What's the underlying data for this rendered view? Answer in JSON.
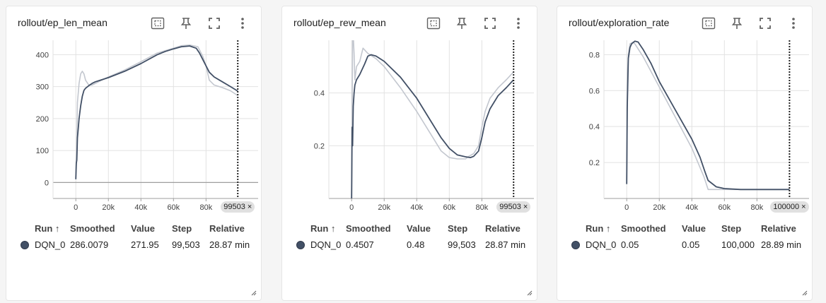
{
  "colors": {
    "smoothed": "#425066",
    "raw": "#c3c7cf",
    "grid": "#e2e2e2",
    "axis": "#9e9e9e"
  },
  "table_headers": {
    "run": "Run ↑",
    "smoothed": "Smoothed",
    "value": "Value",
    "step": "Step",
    "relative": "Relative"
  },
  "cards": [
    {
      "title": "rollout/ep_len_mean",
      "step_badge": "99503 ×",
      "row": {
        "run": "DQN_0",
        "smoothed": "286.0079",
        "value": "271.95",
        "step": "99,503",
        "relative": "28.87 min"
      }
    },
    {
      "title": "rollout/ep_rew_mean",
      "step_badge": "99503 ×",
      "row": {
        "run": "DQN_0",
        "smoothed": "0.4507",
        "value": "0.48",
        "step": "99,503",
        "relative": "28.87 min"
      }
    },
    {
      "title": "rollout/exploration_rate",
      "step_badge": "100000 ×",
      "row": {
        "run": "DQN_0",
        "smoothed": "0.05",
        "value": "0.05",
        "step": "100,000",
        "relative": "28.89 min"
      }
    }
  ],
  "chart_data": [
    {
      "type": "line",
      "title": "rollout/ep_len_mean",
      "xlim": [
        -14000,
        112000
      ],
      "ylim": [
        -50,
        445
      ],
      "xticks": [
        0,
        20000,
        40000,
        60000,
        80000
      ],
      "xtick_labels": [
        "0",
        "20k",
        "40k",
        "60k",
        "80k"
      ],
      "yticks": [
        0,
        100,
        200,
        300,
        400
      ],
      "ytick_labels": [
        "0",
        "100",
        "200",
        "300",
        "400"
      ],
      "cursor_step": 99503,
      "series": [
        {
          "name": "DQN_0",
          "kind": "raw",
          "x": [
            0,
            500,
            1000,
            2000,
            3000,
            4000,
            5000,
            6000,
            8000,
            10000,
            12000,
            15000,
            20000,
            30000,
            40000,
            50000,
            60000,
            65000,
            70000,
            75000,
            78000,
            80000,
            82000,
            85000,
            90000,
            95000,
            99503
          ],
          "y": [
            15,
            100,
            250,
            310,
            340,
            348,
            340,
            320,
            305,
            305,
            310,
            318,
            330,
            352,
            378,
            405,
            420,
            428,
            430,
            425,
            395,
            365,
            320,
            305,
            297,
            287,
            272
          ]
        },
        {
          "name": "DQN_0",
          "kind": "smoothed",
          "x": [
            0,
            300,
            600,
            1000,
            1500,
            2000,
            3000,
            4000,
            5000,
            6000,
            8000,
            10000,
            12000,
            15000,
            20000,
            30000,
            40000,
            50000,
            55000,
            60000,
            65000,
            70000,
            74000,
            76000,
            78000,
            80000,
            82000,
            85000,
            90000,
            95000,
            99503
          ],
          "y": [
            10,
            60,
            70,
            140,
            170,
            200,
            240,
            270,
            288,
            295,
            303,
            310,
            315,
            320,
            328,
            348,
            372,
            400,
            410,
            418,
            425,
            427,
            420,
            405,
            385,
            365,
            345,
            330,
            315,
            300,
            286
          ]
        }
      ]
    },
    {
      "type": "line",
      "title": "rollout/ep_rew_mean",
      "xlim": [
        -14000,
        112000
      ],
      "ylim": [
        0,
        0.6
      ],
      "xticks": [
        0,
        20000,
        40000,
        60000,
        80000
      ],
      "xtick_labels": [
        "0",
        "20k",
        "40k",
        "60k",
        "80k"
      ],
      "yticks": [
        0.2,
        0.4
      ],
      "ytick_labels": [
        "0.2",
        "0.4"
      ],
      "cursor_step": 99503,
      "series": [
        {
          "name": "DQN_0",
          "kind": "raw",
          "x": [
            0,
            300,
            600,
            1000,
            1500,
            2000,
            3000,
            5000,
            7000,
            10000,
            15000,
            20000,
            30000,
            40000,
            50000,
            55000,
            60000,
            65000,
            70000,
            72000,
            75000,
            78000,
            80000,
            82000,
            85000,
            90000,
            95000,
            99503
          ],
          "y": [
            0,
            0.3,
            0.6,
            0.62,
            0.55,
            0.45,
            0.5,
            0.52,
            0.57,
            0.55,
            0.53,
            0.5,
            0.42,
            0.33,
            0.23,
            0.18,
            0.155,
            0.15,
            0.15,
            0.16,
            0.17,
            0.2,
            0.27,
            0.33,
            0.38,
            0.42,
            0.45,
            0.48
          ]
        },
        {
          "name": "DQN_0",
          "kind": "smoothed",
          "x": [
            0,
            300,
            600,
            1000,
            1500,
            2000,
            3000,
            5000,
            8000,
            10000,
            12000,
            15000,
            20000,
            30000,
            40000,
            50000,
            55000,
            60000,
            65000,
            70000,
            73000,
            75000,
            78000,
            80000,
            82000,
            85000,
            90000,
            95000,
            99503
          ],
          "y": [
            0,
            0.27,
            0.2,
            0.35,
            0.4,
            0.43,
            0.45,
            0.47,
            0.51,
            0.54,
            0.545,
            0.54,
            0.52,
            0.46,
            0.38,
            0.28,
            0.23,
            0.19,
            0.165,
            0.158,
            0.155,
            0.16,
            0.18,
            0.23,
            0.29,
            0.34,
            0.39,
            0.42,
            0.45
          ]
        }
      ]
    },
    {
      "type": "line",
      "title": "rollout/exploration_rate",
      "xlim": [
        -14000,
        112000
      ],
      "ylim": [
        0,
        0.88
      ],
      "xticks": [
        0,
        20000,
        40000,
        60000,
        80000
      ],
      "xtick_labels": [
        "0",
        "20k",
        "40k",
        "60k",
        "80k"
      ],
      "yticks": [
        0.2,
        0.4,
        0.6,
        0.8
      ],
      "ytick_labels": [
        "0.2",
        "0.4",
        "0.6",
        "0.8"
      ],
      "cursor_step": 100000,
      "series": [
        {
          "name": "DQN_0",
          "kind": "raw",
          "x": [
            0,
            500,
            1000,
            2000,
            4000,
            5000,
            10000,
            20000,
            30000,
            40000,
            47500,
            50000,
            60000,
            70000,
            80000,
            90000,
            100000
          ],
          "y": [
            0.1,
            0.7,
            0.8,
            0.86,
            0.87,
            0.86,
            0.79,
            0.62,
            0.45,
            0.28,
            0.12,
            0.05,
            0.05,
            0.05,
            0.05,
            0.05,
            0.05
          ]
        },
        {
          "name": "DQN_0",
          "kind": "smoothed",
          "x": [
            0,
            300,
            600,
            1000,
            2000,
            3000,
            5000,
            7000,
            10000,
            15000,
            20000,
            30000,
            40000,
            45000,
            48000,
            50000,
            55000,
            60000,
            70000,
            80000,
            90000,
            100000
          ],
          "y": [
            0.08,
            0.5,
            0.62,
            0.78,
            0.84,
            0.86,
            0.875,
            0.87,
            0.83,
            0.75,
            0.65,
            0.49,
            0.33,
            0.23,
            0.15,
            0.1,
            0.065,
            0.055,
            0.05,
            0.05,
            0.05,
            0.05
          ]
        }
      ]
    }
  ]
}
